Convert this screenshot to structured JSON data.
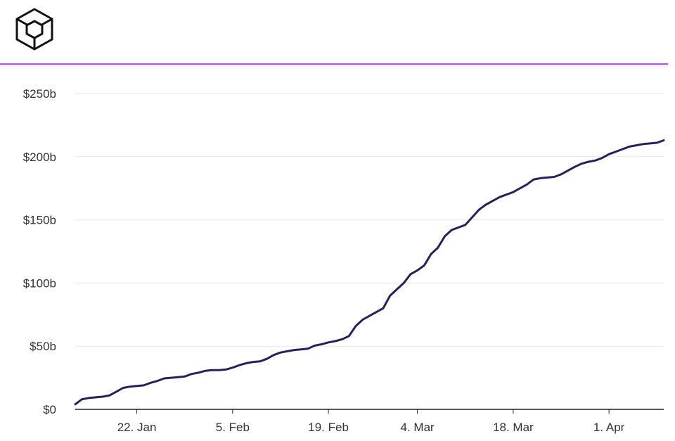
{
  "header": {
    "logo_icon": "cube-logo-icon",
    "accent_color": "#b74ee8"
  },
  "chart_data": {
    "type": "line",
    "title": "",
    "xlabel": "",
    "ylabel": "",
    "x_range": [
      "2021-01-13",
      "2021-04-09"
    ],
    "ylim": [
      0,
      250
    ],
    "y_unit": "billion USD",
    "y_ticks": [
      0,
      50,
      100,
      150,
      200,
      250
    ],
    "y_tick_labels": [
      "$0",
      "$50b",
      "$100b",
      "$150b",
      "$200b",
      "$250b"
    ],
    "x_ticks": [
      "2021-01-22",
      "2021-02-05",
      "2021-02-19",
      "2021-03-04",
      "2021-03-18",
      "2021-04-01"
    ],
    "x_tick_labels": [
      "22. Jan",
      "5. Feb",
      "19. Feb",
      "4. Mar",
      "18. Mar",
      "1. Apr"
    ],
    "grid": true,
    "legend": false,
    "line_color": "#2a1f5a",
    "series": [
      {
        "x": [
          "2021-01-13",
          "2021-01-14",
          "2021-01-15",
          "2021-01-16",
          "2021-01-17",
          "2021-01-18",
          "2021-01-19",
          "2021-01-20",
          "2021-01-21",
          "2021-01-22",
          "2021-01-23",
          "2021-01-24",
          "2021-01-25",
          "2021-01-26",
          "2021-01-27",
          "2021-01-28",
          "2021-01-29",
          "2021-01-30",
          "2021-01-31",
          "2021-02-01",
          "2021-02-02",
          "2021-02-03",
          "2021-02-04",
          "2021-02-05",
          "2021-02-06",
          "2021-02-07",
          "2021-02-08",
          "2021-02-09",
          "2021-02-10",
          "2021-02-11",
          "2021-02-12",
          "2021-02-13",
          "2021-02-14",
          "2021-02-15",
          "2021-02-16",
          "2021-02-17",
          "2021-02-18",
          "2021-02-19",
          "2021-02-20",
          "2021-02-21",
          "2021-02-22",
          "2021-02-23",
          "2021-02-24",
          "2021-02-25",
          "2021-02-26",
          "2021-02-27",
          "2021-02-28",
          "2021-03-01",
          "2021-03-02",
          "2021-03-03",
          "2021-03-04",
          "2021-03-05",
          "2021-03-06",
          "2021-03-07",
          "2021-03-08",
          "2021-03-09",
          "2021-03-10",
          "2021-03-11",
          "2021-03-12",
          "2021-03-13",
          "2021-03-14",
          "2021-03-15",
          "2021-03-16",
          "2021-03-17",
          "2021-03-18",
          "2021-03-19",
          "2021-03-20",
          "2021-03-21",
          "2021-03-22",
          "2021-03-23",
          "2021-03-24",
          "2021-03-25",
          "2021-03-26",
          "2021-03-27",
          "2021-03-28",
          "2021-03-29",
          "2021-03-30",
          "2021-03-31",
          "2021-04-01",
          "2021-04-02",
          "2021-04-03",
          "2021-04-04",
          "2021-04-05",
          "2021-04-06",
          "2021-04-07",
          "2021-04-08",
          "2021-04-09"
        ],
        "values": [
          4,
          8,
          9,
          9.5,
          10,
          11,
          14,
          17,
          18,
          18.5,
          19,
          21,
          22.5,
          24.5,
          25,
          25.5,
          26,
          28,
          29,
          30.5,
          31,
          31,
          31.5,
          33,
          35,
          36.5,
          37.5,
          38,
          40,
          43,
          45,
          46,
          47,
          47.5,
          48,
          50.5,
          51.5,
          53,
          54,
          55.5,
          58,
          66,
          71,
          74,
          77,
          80,
          90,
          95,
          100,
          107,
          110,
          114,
          123,
          128,
          137,
          142,
          144,
          146,
          152,
          158,
          162,
          165,
          168,
          170,
          172,
          175,
          178,
          182,
          183,
          183.5,
          184,
          186,
          189,
          192,
          194.5,
          196,
          197,
          199,
          202,
          204,
          206,
          208,
          209,
          210,
          210.5,
          211,
          213
        ]
      }
    ]
  }
}
